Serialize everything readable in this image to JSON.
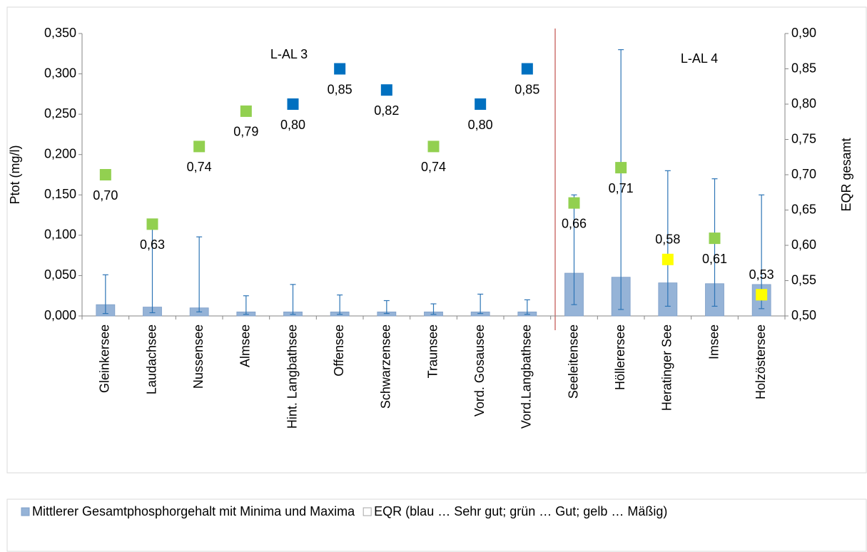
{
  "chart_data": {
    "type": "bar-scatter",
    "y_label": "Ptot (mg/l)",
    "y2_label": "EQR gesamt",
    "annotations": [
      "L-AL 3",
      "L-AL 4"
    ],
    "categories": [
      "Gleinkersee",
      "Laudachsee",
      "Nussensee",
      "Almsee",
      "Hint. Langbathsee",
      "Offensee",
      "Schwarzensee",
      "Traunsee",
      "Vord. Gosausee",
      "Vord.Langbathsee",
      "Seeleitensee",
      "Höllerersee",
      "Heratinger See",
      "Imsee",
      "Holzöstersee"
    ],
    "series": [
      {
        "name": "Mittlerer Gesamtphosphorgehalt mit Minima und Maxima",
        "color": "#95b3d7",
        "error_color": "#2e75b6",
        "values": [
          0.014,
          0.011,
          0.01,
          0.005,
          0.005,
          0.005,
          0.005,
          0.005,
          0.005,
          0.005,
          0.053,
          0.048,
          0.041,
          0.04,
          0.039
        ],
        "min": [
          0.003,
          0.004,
          0.005,
          0.002,
          0.002,
          0.002,
          0.003,
          0.002,
          0.003,
          0.002,
          0.014,
          0.008,
          0.012,
          0.012,
          0.009
        ],
        "max": [
          0.051,
          0.12,
          0.098,
          0.025,
          0.039,
          0.026,
          0.019,
          0.015,
          0.027,
          0.02,
          0.15,
          0.33,
          0.18,
          0.17,
          0.15
        ]
      },
      {
        "name": "EQR (blau … Sehr gut; grün … Gut; gelb … Mäßig)",
        "axis": "y2",
        "color": "#ffffff",
        "values": [
          0.7,
          0.63,
          0.74,
          0.79,
          0.8,
          0.85,
          0.82,
          0.74,
          0.8,
          0.85,
          0.66,
          0.71,
          0.58,
          0.61,
          0.53
        ],
        "value_labels": [
          "0,70",
          "0,63",
          "0,74",
          "0,79",
          "0,80",
          "0,85",
          "0,82",
          "0,74",
          "0,80",
          "0,85",
          "0,66",
          "0,71",
          "0,58",
          "0,61",
          "0,53"
        ],
        "point_colors": [
          "#92d050",
          "#92d050",
          "#92d050",
          "#92d050",
          "#0070c0",
          "#0070c0",
          "#0070c0",
          "#92d050",
          "#0070c0",
          "#0070c0",
          "#92d050",
          "#92d050",
          "#ffff00",
          "#92d050",
          "#ffff00"
        ]
      }
    ],
    "ylim": [
      0,
      0.35
    ],
    "yticks": [
      {
        "value": 0,
        "label": "0,000"
      },
      {
        "value": 0.05,
        "label": "0,050"
      },
      {
        "value": 0.1,
        "label": "0,100"
      },
      {
        "value": 0.15,
        "label": "0,150"
      },
      {
        "value": 0.2,
        "label": "0,200"
      },
      {
        "value": 0.25,
        "label": "0,250"
      },
      {
        "value": 0.3,
        "label": "0,300"
      },
      {
        "value": 0.35,
        "label": "0,350"
      }
    ],
    "y2lim": [
      0.5,
      0.9
    ],
    "y2ticks": [
      {
        "value": 0.5,
        "label": "0,50"
      },
      {
        "value": 0.55,
        "label": "0,55"
      },
      {
        "value": 0.6,
        "label": "0,60"
      },
      {
        "value": 0.65,
        "label": "0,65"
      },
      {
        "value": 0.7,
        "label": "0,70"
      },
      {
        "value": 0.75,
        "label": "0,75"
      },
      {
        "value": 0.8,
        "label": "0,80"
      },
      {
        "value": 0.85,
        "label": "0,85"
      },
      {
        "value": 0.9,
        "label": "0,90"
      }
    ],
    "grid": false
  }
}
